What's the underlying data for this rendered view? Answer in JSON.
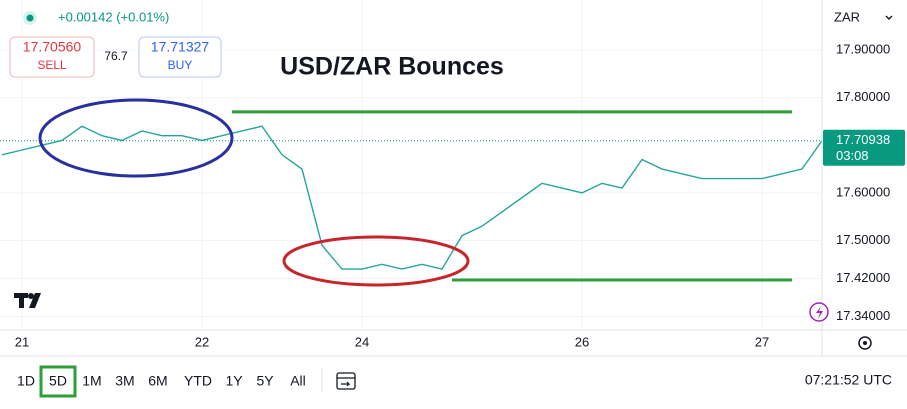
{
  "header": {
    "change": "+0.00142 (+0.01%)",
    "sell_price": "17.70560",
    "sell_label": "SELL",
    "spread": "76.7",
    "buy_price": "17.71327",
    "buy_label": "BUY",
    "currency": "ZAR"
  },
  "chart_data": {
    "type": "line",
    "title": "USD/ZAR Bounces",
    "categories": [
      null,
      "21",
      null,
      null,
      null,
      null,
      null,
      null,
      null,
      null,
      "22",
      null,
      null,
      null,
      null,
      null,
      null,
      null,
      "24",
      null,
      null,
      null,
      null,
      null,
      null,
      null,
      null,
      null,
      null,
      "26",
      null,
      null,
      null,
      null,
      null,
      null,
      null,
      null,
      "27",
      null,
      null,
      null
    ],
    "values": [
      17.68,
      17.69,
      17.7,
      17.71,
      17.74,
      17.72,
      17.71,
      17.73,
      17.72,
      17.72,
      17.71,
      17.72,
      17.73,
      17.74,
      17.68,
      17.65,
      17.49,
      17.44,
      17.44,
      17.45,
      17.44,
      17.45,
      17.44,
      17.51,
      17.53,
      17.56,
      17.59,
      17.62,
      17.61,
      17.6,
      17.62,
      17.61,
      17.67,
      17.65,
      17.64,
      17.63,
      17.63,
      17.63,
      17.63,
      17.64,
      17.65,
      17.70938
    ],
    "color": "#26a69a",
    "ylim": [
      17.312,
      18.005
    ],
    "yticks": [
      {
        "value": 17.9,
        "label": "17.90000"
      },
      {
        "value": 17.8,
        "label": "17.80000"
      },
      {
        "value": 17.6,
        "label": "17.60000"
      },
      {
        "value": 17.5,
        "label": "17.50000"
      },
      {
        "value": 17.42,
        "label": "17.42000"
      },
      {
        "value": 17.34,
        "label": "17.34000"
      }
    ],
    "grid": true,
    "levels": [
      17.77,
      17.417
    ],
    "level_color": "#2e9e3a",
    "last_price": 17.70938,
    "countdown": "03:08",
    "last_price_color": "#089981"
  },
  "toolbar": {
    "timeframes": [
      "1D",
      "5D",
      "1M",
      "3M",
      "6M",
      "YTD",
      "1Y",
      "5Y",
      "All"
    ],
    "active": "5D",
    "clock": "07:21:52 UTC"
  }
}
